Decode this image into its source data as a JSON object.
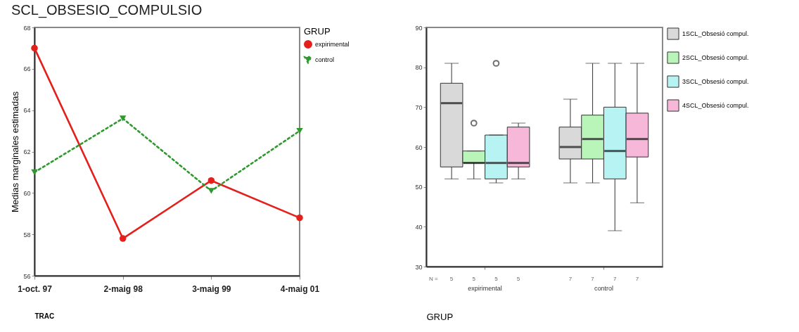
{
  "chart_data": [
    {
      "type": "line",
      "title": "SCL_OBSESIO_COMPULSIO",
      "xlabel": "TRAC",
      "ylabel": "Medias marginales estimadas",
      "legend_title": "GRUP",
      "legend": "right",
      "categories": [
        "1-oct. 97",
        "2-maig 98",
        "3-maig 99",
        "4-maig 01"
      ],
      "ylim": [
        56,
        68
      ],
      "yticks": [
        56,
        58,
        60,
        62,
        64,
        66,
        68
      ],
      "series": [
        {
          "name": "expirimental",
          "color": "#e3201c",
          "marker": "circle",
          "line_style": "solid",
          "values": [
            67.0,
            57.8,
            60.6,
            58.8
          ]
        },
        {
          "name": "control",
          "color": "#2e9a2e",
          "marker": "triangle",
          "line_style": "dotted",
          "values": [
            61.0,
            63.6,
            60.1,
            63.0
          ]
        }
      ]
    },
    {
      "type": "box",
      "xlabel": "GRUP",
      "legend": "right",
      "categories": [
        "expirimental",
        "control"
      ],
      "ylim": [
        30,
        90
      ],
      "yticks": [
        30,
        40,
        50,
        60,
        70,
        80,
        90
      ],
      "annotations": [
        "N =",
        "5",
        "5",
        "5",
        "5",
        "7",
        "7",
        "7",
        "7"
      ],
      "series": [
        {
          "name": "1SCL_Obsesió compul.",
          "color": "#d9d9d9",
          "boxes": [
            {
              "low": 52,
              "q1": 55,
              "median": 71,
              "q3": 76,
              "high": 81
            },
            {
              "low": 51,
              "q1": 57,
              "median": 60,
              "q3": 65,
              "high": 72
            }
          ]
        },
        {
          "name": "2SCL_Obsesió compul.",
          "color": "#b9f5b9",
          "boxes": [
            {
              "low": 52,
              "q1": 56,
              "median": 56,
              "q3": 59,
              "high": 59,
              "outliers": [
                66
              ]
            },
            {
              "low": 51,
              "q1": 57,
              "median": 62,
              "q3": 68,
              "high": 81
            }
          ]
        },
        {
          "name": "3SCL_Obsesió compul.",
          "color": "#b7f3f3",
          "boxes": [
            {
              "low": 51,
              "q1": 52,
              "median": 56,
              "q3": 63,
              "high": 63,
              "outliers": [
                81
              ]
            },
            {
              "low": 39,
              "q1": 52,
              "median": 59,
              "q3": 70,
              "high": 81
            }
          ]
        },
        {
          "name": "4SCL_Obsesió compul.",
          "color": "#f7b7d9",
          "boxes": [
            {
              "low": 52,
              "q1": 55,
              "median": 56,
              "q3": 65,
              "high": 66
            },
            {
              "low": 46,
              "q1": 57.5,
              "median": 62,
              "q3": 68.5,
              "high": 81
            }
          ]
        }
      ]
    }
  ]
}
